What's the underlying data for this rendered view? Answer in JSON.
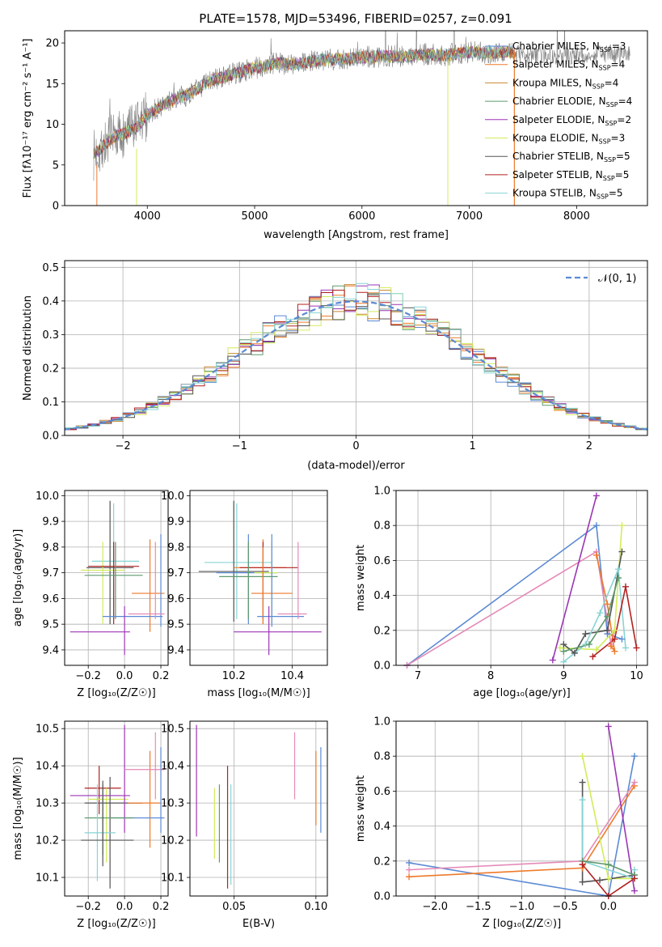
{
  "figure": {
    "title": "PLATE=1578, MJD=53496, FIBERID=0257, z=0.091"
  },
  "colors": {
    "chabrier_miles": "#5b8ad4",
    "salpeter_miles": "#ee7a2a",
    "kroupa_miles": "#c8882e",
    "chabrier_elodie": "#5e9a6e",
    "salpeter_elodie": "#9b36b5",
    "kroupa_elodie": "#d2ec5c",
    "chabrier_stelib": "#555555",
    "salpeter_stelib": "#b22222",
    "kroupa_stelib": "#88d4d4",
    "data": "#808080",
    "gaussian": "#5b8ad4",
    "pink": "#e58ab7"
  },
  "chart_data": [
    {
      "type": "line",
      "id": "spectrum",
      "xlabel": "wavelength [Angstrom, rest frame]",
      "ylabel": "Flux [f_λ10^-17 erg cm^-2 s^-1 A^-1]",
      "xlim": [
        3230,
        8660
      ],
      "ylim": [
        0,
        21.5
      ],
      "xticks": [
        4000,
        5000,
        6000,
        7000,
        8000
      ],
      "yticks": [
        0,
        5,
        10,
        15,
        20
      ],
      "grid": false,
      "legend_position": "right",
      "envelope": {
        "x": [
          3500,
          3600,
          3700,
          3800,
          3900,
          4000,
          4200,
          4400,
          4600,
          4800,
          5000,
          5200,
          5400,
          5600,
          5800,
          6000,
          6200,
          6400,
          6600,
          6800,
          7000,
          7200,
          7400
        ],
        "y": [
          6.2,
          7.5,
          8.5,
          9.0,
          9.5,
          11.2,
          12.8,
          13.8,
          15.4,
          16.2,
          16.9,
          17.5,
          17.4,
          17.9,
          18.0,
          18.2,
          18.4,
          18.3,
          18.6,
          18.5,
          18.9,
          18.8,
          18.9
        ]
      },
      "data_extent": [
        3500,
        8500
      ],
      "model_extent": [
        3500,
        7420
      ],
      "legend": [
        {
          "label": "Chabrier MILES, N",
          "sub": "SSP",
          "val": "=3",
          "color_key": "chabrier_miles"
        },
        {
          "label": "Salpeter MILES, N",
          "sub": "SSP",
          "val": "=4",
          "color_key": "salpeter_miles"
        },
        {
          "label": "Kroupa MILES, N",
          "sub": "SSP",
          "val": "=4",
          "color_key": "kroupa_miles"
        },
        {
          "label": "Chabrier ELODIE, N",
          "sub": "SSP",
          "val": "=4",
          "color_key": "chabrier_elodie"
        },
        {
          "label": "Salpeter ELODIE, N",
          "sub": "SSP",
          "val": "=2",
          "color_key": "salpeter_elodie"
        },
        {
          "label": "Kroupa ELODIE, N",
          "sub": "SSP",
          "val": "=3",
          "color_key": "kroupa_elodie"
        },
        {
          "label": "Chabrier STELIB, N",
          "sub": "SSP",
          "val": "=5",
          "color_key": "chabrier_stelib"
        },
        {
          "label": "Salpeter STELIB, N",
          "sub": "SSP",
          "val": "=5",
          "color_key": "salpeter_stelib"
        },
        {
          "label": "Kroupa STELIB, N",
          "sub": "SSP",
          "val": "=5",
          "color_key": "kroupa_stelib"
        }
      ]
    },
    {
      "type": "line",
      "id": "residuals",
      "xlabel": "(data-model)/error",
      "ylabel": "Normed distribution",
      "xlim": [
        -2.5,
        2.5
      ],
      "ylim": [
        0,
        0.52
      ],
      "xticks": [
        -2,
        -1,
        0,
        1,
        2
      ],
      "ytick_values": [
        0.0,
        0.1,
        0.2,
        0.3,
        0.4,
        0.5
      ],
      "ytick_labels": [
        "0.0",
        "0.1",
        "0.2",
        "0.3",
        "0.4",
        "0.5"
      ],
      "xtick_labels": [
        "−2",
        "−1",
        "0",
        "1",
        "2"
      ],
      "grid": true,
      "legend_label": "𝒩(0, 1)",
      "legend_position": "top-right",
      "histogram_bin_width": 0.1
    },
    {
      "type": "scatter",
      "id": "age_vs_Z",
      "xlabel": "Z [log₁₀(Z/Z☉)]",
      "ylabel": "age  [log₁₀(age/yr)]",
      "xlim": [
        -0.33,
        0.24
      ],
      "ylim": [
        9.34,
        10.02
      ],
      "xticks": [
        -0.2,
        0.0,
        0.2
      ],
      "xtick_labels": [
        "−0.2",
        "0.0",
        "0.2"
      ],
      "yticks": [
        9.4,
        9.5,
        9.6,
        9.7,
        9.8,
        9.9,
        10.0
      ],
      "ytick_labels": [
        "9.4",
        "9.5",
        "9.6",
        "9.7",
        "9.8",
        "9.9",
        "10.0"
      ],
      "grid": true,
      "points": [
        {
          "x": -0.06,
          "xlo": -0.18,
          "xhi": 0.08,
          "y": 9.745,
          "ylo": 9.52,
          "yhi": 9.97,
          "color_key": "kroupa_stelib"
        },
        {
          "x": -0.08,
          "xlo": -0.21,
          "xhi": 0.05,
          "y": 9.72,
          "ylo": 9.5,
          "yhi": 9.98,
          "color_key": "chabrier_stelib"
        },
        {
          "x": -0.12,
          "xlo": -0.24,
          "xhi": 0.0,
          "y": 9.71,
          "ylo": 9.5,
          "yhi": 9.82,
          "color_key": "kroupa_elodie"
        },
        {
          "x": -0.06,
          "xlo": -0.2,
          "xhi": 0.08,
          "y": 9.725,
          "ylo": 9.5,
          "yhi": 9.82,
          "color_key": "salpeter_stelib"
        },
        {
          "x": -0.05,
          "xlo": -0.22,
          "xhi": 0.1,
          "y": 9.69,
          "ylo": 9.52,
          "yhi": 9.82,
          "color_key": "chabrier_elodie"
        },
        {
          "x": 0.14,
          "xlo": 0.04,
          "xhi": 0.22,
          "y": 9.62,
          "ylo": 9.47,
          "yhi": 9.83,
          "color_key": "salpeter_miles"
        },
        {
          "x": 0.2,
          "xlo": -0.12,
          "xhi": 0.21,
          "y": 9.53,
          "ylo": 9.49,
          "yhi": 9.85,
          "color_key": "chabrier_miles"
        },
        {
          "x": 0.17,
          "xlo": 0.02,
          "xhi": 0.22,
          "y": 9.54,
          "ylo": 9.52,
          "yhi": 9.82,
          "color_key": "pink"
        },
        {
          "x": 0.0,
          "xlo": -0.3,
          "xhi": 0.03,
          "y": 9.47,
          "ylo": 9.38,
          "yhi": 9.57,
          "color_key": "salpeter_elodie"
        }
      ]
    },
    {
      "type": "scatter",
      "id": "age_vs_mass",
      "xlabel": "mass [log₁₀(M/M☉)]",
      "ylabel": "",
      "xlim": [
        10.05,
        10.52
      ],
      "ylim": [
        9.34,
        10.02
      ],
      "xticks": [
        10.2,
        10.4
      ],
      "xtick_labels": [
        "10.2",
        "10.4"
      ],
      "yticks": [
        9.4,
        9.5,
        9.6,
        9.7,
        9.8,
        9.9,
        10.0
      ],
      "ytick_labels": [
        "9.4",
        "9.5",
        "9.6",
        "9.7",
        "9.8",
        "9.9",
        "10.0"
      ],
      "grid": true,
      "points": [
        {
          "x": 10.21,
          "xlo": 10.1,
          "xhi": 10.33,
          "y": 9.74,
          "ylo": 9.52,
          "yhi": 9.97,
          "color_key": "kroupa_stelib"
        },
        {
          "x": 10.2,
          "xlo": 10.08,
          "xhi": 10.32,
          "y": 9.705,
          "ylo": 9.51,
          "yhi": 9.98,
          "color_key": "chabrier_stelib"
        },
        {
          "x": 10.25,
          "xlo": 10.14,
          "xhi": 10.35,
          "y": 9.7,
          "ylo": 9.5,
          "yhi": 9.85,
          "color_key": "chabrier_miles"
        },
        {
          "x": 10.3,
          "xlo": 10.2,
          "xhi": 10.38,
          "y": 9.72,
          "ylo": 9.5,
          "yhi": 9.83,
          "color_key": "salpeter_miles"
        },
        {
          "x": 10.3,
          "xlo": 10.22,
          "xhi": 10.42,
          "y": 9.72,
          "ylo": 9.52,
          "yhi": 9.82,
          "color_key": "salpeter_stelib"
        },
        {
          "x": 10.33,
          "xlo": 10.27,
          "xhi": 10.35,
          "y": 9.7,
          "ylo": 9.5,
          "yhi": 9.82,
          "color_key": "kroupa_elodie"
        },
        {
          "x": 10.25,
          "xlo": 10.15,
          "xhi": 10.35,
          "y": 9.685,
          "ylo": 9.52,
          "yhi": 9.82,
          "color_key": "chabrier_elodie"
        },
        {
          "x": 10.3,
          "xlo": 10.26,
          "xhi": 10.4,
          "y": 9.62,
          "ylo": 9.5,
          "yhi": 9.8,
          "color_key": "salpeter_miles"
        },
        {
          "x": 10.33,
          "xlo": 10.28,
          "xhi": 10.44,
          "y": 9.53,
          "ylo": 9.49,
          "yhi": 9.85,
          "color_key": "chabrier_miles"
        },
        {
          "x": 10.42,
          "xlo": 10.35,
          "xhi": 10.45,
          "y": 9.54,
          "ylo": 9.52,
          "yhi": 9.82,
          "color_key": "pink"
        },
        {
          "x": 10.32,
          "xlo": 10.2,
          "xhi": 10.5,
          "y": 9.47,
          "ylo": 9.38,
          "yhi": 9.57,
          "color_key": "salpeter_elodie"
        }
      ]
    },
    {
      "type": "line",
      "id": "massweight_vs_age",
      "xlabel": "age  [log₁₀(age/yr)]",
      "ylabel": "mass weight",
      "xlim": [
        6.7,
        10.15
      ],
      "ylim": [
        0,
        1
      ],
      "xticks": [
        7,
        8,
        9,
        10
      ],
      "yticks": [
        0.0,
        0.2,
        0.4,
        0.6,
        0.8,
        1.0
      ],
      "ytick_labels": [
        "0.0",
        "0.2",
        "0.4",
        "0.6",
        "0.8",
        "1.0"
      ],
      "grid": true,
      "series": [
        {
          "color_key": "chabrier_miles",
          "x": [
            6.85,
            9.45,
            9.6,
            9.8
          ],
          "y": [
            0.0,
            0.8,
            0.18,
            0.15
          ]
        },
        {
          "color_key": "pink",
          "x": [
            6.85,
            9.45,
            9.65,
            9.7
          ],
          "y": [
            0.0,
            0.65,
            0.12,
            0.2
          ]
        },
        {
          "color_key": "salpeter_elodie",
          "x": [
            8.85,
            9.45
          ],
          "y": [
            0.03,
            0.97
          ]
        },
        {
          "color_key": "salpeter_miles",
          "x": [
            9.45,
            9.6,
            9.7,
            9.65
          ],
          "y": [
            0.63,
            0.35,
            0.08,
            0.11
          ]
        },
        {
          "color_key": "kroupa_elodie",
          "x": [
            8.95,
            9.45,
            9.7,
            9.8
          ],
          "y": [
            0.1,
            0.09,
            0.2,
            0.8
          ]
        },
        {
          "color_key": "chabrier_stelib",
          "x": [
            9.0,
            9.15,
            9.3,
            9.6,
            9.8
          ],
          "y": [
            0.12,
            0.07,
            0.18,
            0.2,
            0.65
          ]
        },
        {
          "color_key": "kroupa_stelib",
          "x": [
            9.0,
            9.3,
            9.5,
            9.75,
            9.85
          ],
          "y": [
            0.02,
            0.12,
            0.3,
            0.55,
            0.1
          ]
        },
        {
          "color_key": "chabrier_elodie",
          "x": [
            9.0,
            9.35,
            9.6,
            9.75
          ],
          "y": [
            0.08,
            0.12,
            0.28,
            0.5
          ]
        },
        {
          "color_key": "salpeter_stelib",
          "x": [
            9.4,
            9.7,
            9.85,
            10.0
          ],
          "y": [
            0.05,
            0.15,
            0.45,
            0.1
          ]
        }
      ]
    },
    {
      "type": "scatter",
      "id": "mass_vs_Z",
      "xlabel": "Z [log₁₀(Z/Z☉)]",
      "ylabel": "mass [log₁₀(M/M☉)]",
      "xlim": [
        -0.33,
        0.24
      ],
      "ylim": [
        10.05,
        10.52
      ],
      "xticks": [
        -0.2,
        0.0,
        0.2
      ],
      "xtick_labels": [
        "−0.2",
        "0.0",
        "0.2"
      ],
      "yticks": [
        10.1,
        10.2,
        10.3,
        10.4,
        10.5
      ],
      "ytick_labels": [
        "10.1",
        "10.2",
        "10.3",
        "10.4",
        "10.5"
      ],
      "grid": true,
      "points": [
        {
          "x": -0.14,
          "xlo": -0.22,
          "xhi": -0.02,
          "y": 10.34,
          "ylo": 10.27,
          "yhi": 10.4,
          "color_key": "salpeter_stelib"
        },
        {
          "x": -0.1,
          "xlo": -0.2,
          "xhi": 0.02,
          "y": 10.31,
          "ylo": 10.14,
          "yhi": 10.34,
          "color_key": "kroupa_elodie"
        },
        {
          "x": -0.08,
          "xlo": -0.22,
          "xhi": 0.1,
          "y": 10.3,
          "ylo": 10.07,
          "yhi": 10.37,
          "color_key": "chabrier_stelib"
        },
        {
          "x": 0.0,
          "xlo": -0.3,
          "xhi": 0.03,
          "y": 10.32,
          "ylo": 10.22,
          "yhi": 10.51,
          "color_key": "salpeter_elodie"
        },
        {
          "x": 0.14,
          "xlo": 0.02,
          "xhi": 0.2,
          "y": 10.3,
          "ylo": 10.18,
          "yhi": 10.44,
          "color_key": "salpeter_miles"
        },
        {
          "x": 0.17,
          "xlo": 0.0,
          "xhi": 0.22,
          "y": 10.39,
          "ylo": 10.31,
          "yhi": 10.49,
          "color_key": "pink"
        },
        {
          "x": 0.2,
          "xlo": -0.08,
          "xhi": 0.22,
          "y": 10.26,
          "ylo": 10.22,
          "yhi": 10.45,
          "color_key": "chabrier_miles"
        },
        {
          "x": -0.12,
          "xlo": -0.22,
          "xhi": 0.05,
          "y": 10.26,
          "ylo": 10.16,
          "yhi": 10.35,
          "color_key": "chabrier_elodie"
        },
        {
          "x": -0.15,
          "xlo": -0.22,
          "xhi": -0.05,
          "y": 10.22,
          "ylo": 10.09,
          "yhi": 10.35,
          "color_key": "kroupa_stelib"
        },
        {
          "x": -0.12,
          "xlo": -0.24,
          "xhi": 0.05,
          "y": 10.2,
          "ylo": 10.13,
          "yhi": 10.36,
          "color_key": "chabrier_stelib"
        }
      ]
    },
    {
      "type": "scatter",
      "id": "mass_vs_ebv",
      "xlabel": "E(B-V)",
      "ylabel": "",
      "xlim": [
        0.023,
        0.107
      ],
      "ylim": [
        10.05,
        10.52
      ],
      "xticks": [
        0.05,
        0.1
      ],
      "xtick_labels": [
        "0.05",
        "0.10"
      ],
      "yticks": [
        10.1,
        10.2,
        10.3,
        10.4,
        10.5
      ],
      "ytick_labels": [
        "10.1",
        "10.2",
        "10.3",
        "10.4",
        "10.5"
      ],
      "grid": true,
      "points": [
        {
          "x": 0.027,
          "ylo": 10.21,
          "yhi": 10.51,
          "color_key": "salpeter_elodie"
        },
        {
          "x": 0.038,
          "ylo": 10.15,
          "yhi": 10.34,
          "color_key": "kroupa_elodie"
        },
        {
          "x": 0.041,
          "ylo": 10.14,
          "yhi": 10.35,
          "color_key": "chabrier_elodie"
        },
        {
          "x": 0.046,
          "ylo": 10.07,
          "yhi": 10.4,
          "color_key": "salpeter_stelib"
        },
        {
          "x": 0.048,
          "ylo": 10.08,
          "yhi": 10.35,
          "color_key": "kroupa_stelib"
        },
        {
          "x": 0.087,
          "ylo": 10.31,
          "yhi": 10.49,
          "color_key": "pink"
        },
        {
          "x": 0.1,
          "ylo": 10.24,
          "yhi": 10.44,
          "color_key": "salpeter_miles"
        },
        {
          "x": 0.103,
          "ylo": 10.22,
          "yhi": 10.45,
          "color_key": "chabrier_miles"
        }
      ]
    },
    {
      "type": "line",
      "id": "massweight_vs_Z",
      "xlabel": "Z [log₁₀(Z/Z☉)]",
      "ylabel": "mass weight",
      "xlim": [
        -2.45,
        0.45
      ],
      "ylim": [
        0,
        1
      ],
      "xticks": [
        -2.0,
        -1.5,
        -1.0,
        -0.5,
        0.0
      ],
      "xtick_labels": [
        "−2.0",
        "−1.5",
        "−1.0",
        "−0.5",
        "0.0"
      ],
      "yticks": [
        0.0,
        0.2,
        0.4,
        0.6,
        0.8,
        1.0
      ],
      "ytick_labels": [
        "0.0",
        "0.2",
        "0.4",
        "0.6",
        "0.8",
        "1.0"
      ],
      "grid": true,
      "series": [
        {
          "color_key": "chabrier_miles",
          "x": [
            -2.3,
            0.0,
            0.3
          ],
          "y": [
            0.19,
            0.0,
            0.8
          ]
        },
        {
          "color_key": "salpeter_miles",
          "x": [
            -2.3,
            -0.3,
            0.3
          ],
          "y": [
            0.11,
            0.16,
            0.63
          ]
        },
        {
          "color_key": "pink",
          "x": [
            -2.3,
            -0.3,
            0.3
          ],
          "y": [
            0.15,
            0.2,
            0.65
          ]
        },
        {
          "color_key": "salpeter_elodie",
          "x": [
            0.0,
            0.3
          ],
          "y": [
            0.97,
            0.03
          ]
        },
        {
          "color_key": "kroupa_elodie",
          "x": [
            -0.3,
            0.0,
            0.3
          ],
          "y": [
            0.8,
            0.1,
            0.1
          ]
        },
        {
          "color_key": "chabrier_stelib",
          "x": [
            -0.3,
            -0.3,
            -0.1,
            0.3
          ],
          "y": [
            0.65,
            0.08,
            0.09,
            0.12
          ]
        },
        {
          "color_key": "kroupa_stelib",
          "x": [
            -0.3,
            -0.3,
            0.3,
            0.3
          ],
          "y": [
            0.55,
            0.2,
            0.1,
            0.15
          ]
        },
        {
          "color_key": "chabrier_elodie",
          "x": [
            -0.3,
            0.0,
            0.3
          ],
          "y": [
            0.2,
            0.18,
            0.12
          ]
        },
        {
          "color_key": "salpeter_stelib",
          "x": [
            -0.3,
            0.0,
            0.3
          ],
          "y": [
            0.18,
            0.0,
            0.1
          ]
        }
      ]
    }
  ]
}
